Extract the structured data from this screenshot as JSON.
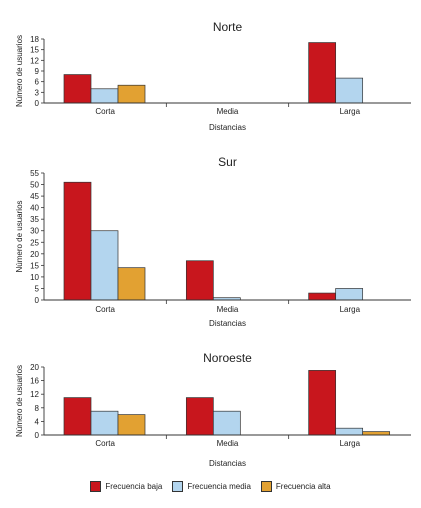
{
  "legend": [
    {
      "name": "Frecuencia baja",
      "color": "#c8161d"
    },
    {
      "name": "Frecuencia media",
      "color": "#b3d5ee"
    },
    {
      "name": "Frecuencia alta",
      "color": "#e2a132"
    }
  ],
  "chart_data": [
    {
      "type": "bar",
      "title": "Norte",
      "xlabel": "Distancias",
      "ylabel": "Número de usuarios",
      "categories": [
        "Corta",
        "Media",
        "Larga"
      ],
      "ylim": [
        0,
        18
      ],
      "yticks": [
        0,
        3,
        6,
        9,
        12,
        15,
        18
      ],
      "series": [
        {
          "name": "Frecuencia baja",
          "values": [
            8,
            0,
            17
          ]
        },
        {
          "name": "Frecuencia media",
          "values": [
            4,
            0,
            7
          ]
        },
        {
          "name": "Frecuencia alta",
          "values": [
            5,
            0,
            0
          ]
        }
      ]
    },
    {
      "type": "bar",
      "title": "Sur",
      "xlabel": "Distancias",
      "ylabel": "Número de usuarios",
      "categories": [
        "Corta",
        "Media",
        "Larga"
      ],
      "ylim": [
        0,
        55
      ],
      "yticks": [
        0,
        5,
        10,
        15,
        20,
        25,
        30,
        35,
        40,
        45,
        50,
        55
      ],
      "series": [
        {
          "name": "Frecuencia baja",
          "values": [
            51,
            17,
            3
          ]
        },
        {
          "name": "Frecuencia media",
          "values": [
            30,
            1,
            5
          ]
        },
        {
          "name": "Frecuencia alta",
          "values": [
            14,
            0,
            0
          ]
        }
      ]
    },
    {
      "type": "bar",
      "title": "Noroeste",
      "xlabel": "Distancias",
      "ylabel": "Número de usuarios",
      "categories": [
        "Corta",
        "Media",
        "Larga"
      ],
      "ylim": [
        0,
        20
      ],
      "yticks": [
        0,
        4,
        8,
        12,
        16,
        20
      ],
      "series": [
        {
          "name": "Frecuencia baja",
          "values": [
            11,
            11,
            19
          ]
        },
        {
          "name": "Frecuencia media",
          "values": [
            7,
            7,
            2
          ]
        },
        {
          "name": "Frecuencia alta",
          "values": [
            6,
            0,
            1
          ]
        }
      ]
    }
  ]
}
